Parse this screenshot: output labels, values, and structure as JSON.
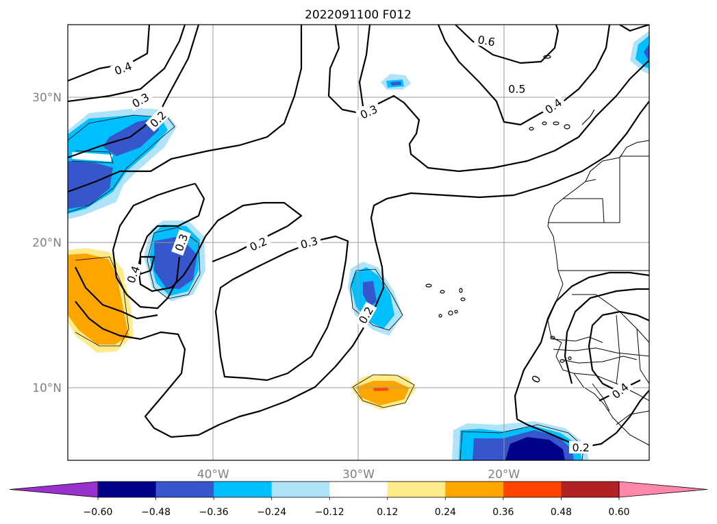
{
  "chart_data": {
    "type": "contour_map",
    "title": "2022091100 F012",
    "x_axis": {
      "range": [
        "50°W",
        "10°W"
      ],
      "ticks": [
        {
          "lon": -40,
          "label": "40°W"
        },
        {
          "lon": -30,
          "label": "30°W"
        },
        {
          "lon": -20,
          "label": "20°W"
        }
      ]
    },
    "y_axis": {
      "range": [
        "5°N",
        "35°N"
      ],
      "ticks": [
        {
          "lat": 10,
          "label": "10°N"
        },
        {
          "lat": 20,
          "label": "20°N"
        },
        {
          "lat": 30,
          "label": "30°N"
        }
      ]
    },
    "grid": true,
    "contour_labels": [
      {
        "text": "0.4",
        "lon": -46.2,
        "lat": 32.0,
        "rot": -20
      },
      {
        "text": "0.3",
        "lon": -45.0,
        "lat": 29.8,
        "rot": -30
      },
      {
        "text": "0.2",
        "lon": -43.8,
        "lat": 28.5,
        "rot": -45
      },
      {
        "text": "0.6",
        "lon": -21.2,
        "lat": 33.9,
        "rot": 10
      },
      {
        "text": "0.5",
        "lon": -19.1,
        "lat": 30.6,
        "rot": 0
      },
      {
        "text": "0.4",
        "lon": -16.6,
        "lat": 29.4,
        "rot": -35
      },
      {
        "text": "0.3",
        "lon": -29.3,
        "lat": 29.0,
        "rot": -25
      },
      {
        "text": "0.2",
        "lon": -36.9,
        "lat": 19.9,
        "rot": -25
      },
      {
        "text": "0.3",
        "lon": -33.4,
        "lat": 20.0,
        "rot": -15
      },
      {
        "text": "0.3",
        "lon": -42.2,
        "lat": 20.0,
        "rot": -70
      },
      {
        "text": "0.4",
        "lon": -45.5,
        "lat": 17.8,
        "rot": -70
      },
      {
        "text": "0.2",
        "lon": -29.5,
        "lat": 15.0,
        "rot": -60
      },
      {
        "text": "0.2",
        "lon": -14.7,
        "lat": 5.9,
        "rot": 0
      },
      {
        "text": "0.4",
        "lon": -12.0,
        "lat": 9.8,
        "rot": -40
      },
      {
        "text": "0",
        "lon": -17.8,
        "lat": 10.6,
        "rot": -60
      }
    ],
    "shaded_anomalies": [
      {
        "region": "NW band 22-30N 46-50W",
        "min_level": -0.48
      },
      {
        "region": "cell near 18N 43W",
        "min_level": -0.48
      },
      {
        "region": "cell near 16N 29.5W",
        "min_level": -0.48
      },
      {
        "region": "small cell near 31N 27.5W",
        "min_level": -0.36
      },
      {
        "region": "NE corner near 33N 10.5W",
        "min_level": -0.48
      },
      {
        "region": "south 5-7N 12-22W",
        "min_level": -0.6
      },
      {
        "region": "W edge 13-19N 46-50W",
        "max_level": 0.36
      },
      {
        "region": "cell near 10N 29W",
        "max_level": 0.48
      }
    ],
    "colorbar": {
      "extend": "both",
      "boundaries": [
        -0.72,
        -0.6,
        -0.48,
        -0.36,
        -0.24,
        -0.12,
        0.12,
        0.24,
        0.36,
        0.48,
        0.6,
        0.72
      ],
      "tick_labels": [
        "−0.60",
        "−0.48",
        "−0.36",
        "−0.24",
        "−0.12",
        "0.12",
        "0.24",
        "0.36",
        "0.48",
        "0.60"
      ],
      "colors": [
        "#9932cc",
        "#00008b",
        "#3657cc",
        "#00bfff",
        "#aee3fa",
        "#ffffff",
        "#ffeb8a",
        "#ffa500",
        "#ff4500",
        "#b22222",
        "#ff88aa",
        "#ff88aa"
      ]
    }
  }
}
